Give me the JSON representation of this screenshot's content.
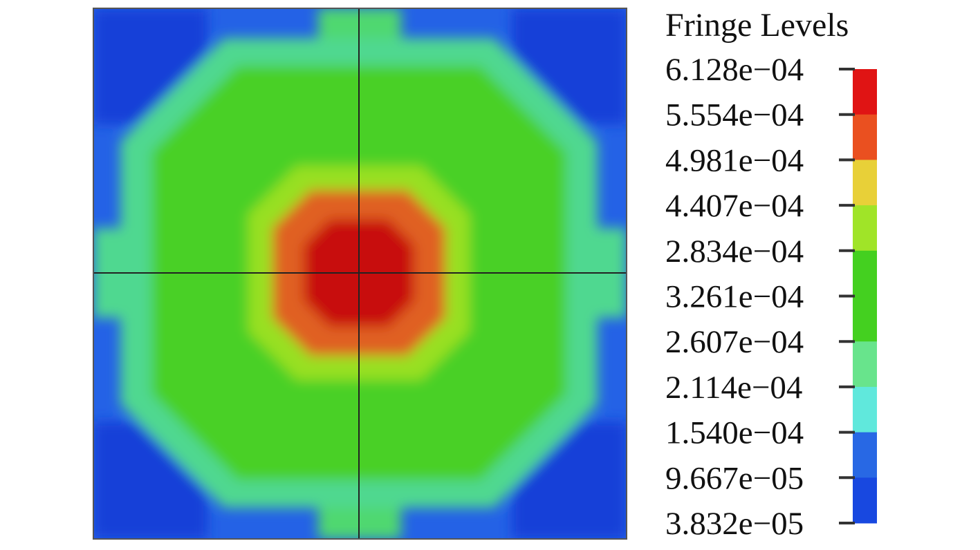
{
  "chart_data": {
    "type": "fringe",
    "legend_title": "Fringe Levels",
    "levels": [
      {
        "value": 0.0006128,
        "label": "6.128e−04"
      },
      {
        "value": 0.0005554,
        "label": "5.554e−04"
      },
      {
        "value": 0.0004981,
        "label": "4.981e−04"
      },
      {
        "value": 0.0004407,
        "label": "4.407e−04"
      },
      {
        "value": 0.0002834,
        "label": "2.834e−04"
      },
      {
        "value": 0.0003261,
        "label": "3.261e−04"
      },
      {
        "value": 0.0002607,
        "label": "2.607e−04"
      },
      {
        "value": 0.0002114,
        "label": "2.114e−04"
      },
      {
        "value": 0.000154,
        "label": "1.540e−04"
      },
      {
        "value": 9.667e-05,
        "label": "9.667e−05"
      },
      {
        "value": 3.832e-05,
        "label": "3.832e−05"
      }
    ],
    "band_colors": [
      "#e01414",
      "#ea5020",
      "#e8d038",
      "#a0e428",
      "#44d020",
      "#44d020",
      "#68e48c",
      "#60e8dc",
      "#2868e4",
      "#1848e0"
    ]
  }
}
